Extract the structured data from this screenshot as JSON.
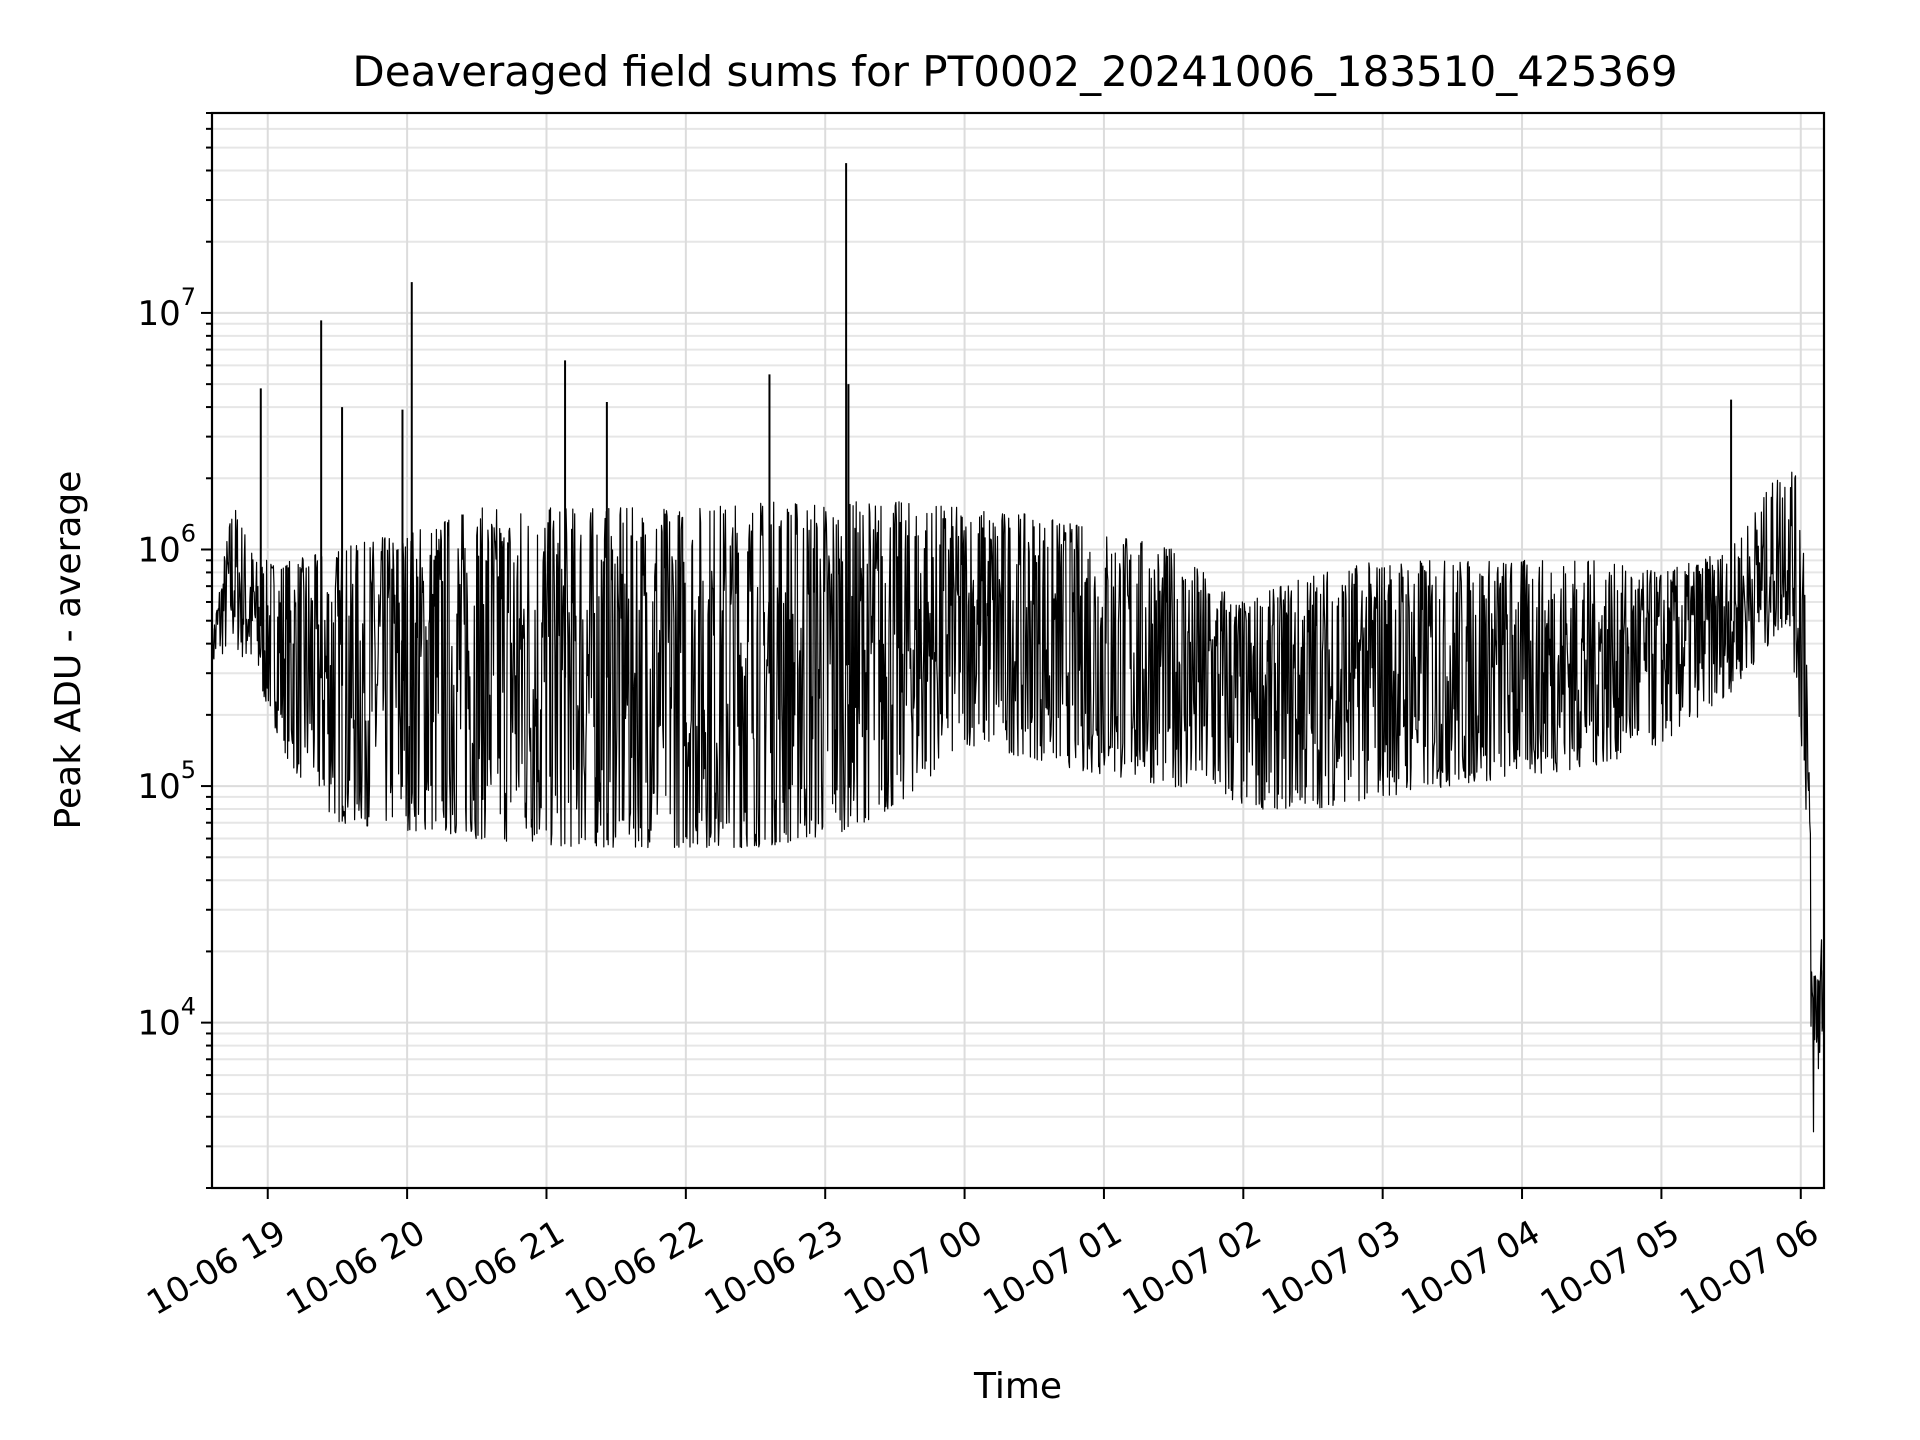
{
  "chart_data": {
    "type": "line",
    "title": "Deaveraged field sums for PT0002_20241006_183510_425369",
    "xlabel": "Time",
    "ylabel": "Peak ADU - average",
    "yscale": "log",
    "ylim": [
      2000,
      70000000
    ],
    "xlim": [
      "2024-10-06 18:36",
      "2024-10-07 06:10"
    ],
    "grid": true,
    "x_ticks": [
      {
        "time": "2024-10-06 19:00",
        "label": "10-06 19"
      },
      {
        "time": "2024-10-06 20:00",
        "label": "10-06 20"
      },
      {
        "time": "2024-10-06 21:00",
        "label": "10-06 21"
      },
      {
        "time": "2024-10-06 22:00",
        "label": "10-06 22"
      },
      {
        "time": "2024-10-06 23:00",
        "label": "10-06 23"
      },
      {
        "time": "2024-10-07 00:00",
        "label": "10-07 00"
      },
      {
        "time": "2024-10-07 01:00",
        "label": "10-07 01"
      },
      {
        "time": "2024-10-07 02:00",
        "label": "10-07 02"
      },
      {
        "time": "2024-10-07 03:00",
        "label": "10-07 03"
      },
      {
        "time": "2024-10-07 04:00",
        "label": "10-07 04"
      },
      {
        "time": "2024-10-07 05:00",
        "label": "10-07 05"
      },
      {
        "time": "2024-10-07 06:00",
        "label": "10-07 06"
      }
    ],
    "y_ticks": [
      {
        "value": 10000,
        "base": "10",
        "exp": "4"
      },
      {
        "value": 100000,
        "base": "10",
        "exp": "5"
      },
      {
        "value": 1000000,
        "base": "10",
        "exp": "6"
      },
      {
        "value": 10000000,
        "base": "10",
        "exp": "7"
      }
    ],
    "series": [
      {
        "color": "#000000",
        "envelope": [
          {
            "time": "2024-10-06 18:36",
            "low": 320000,
            "high": 450000
          },
          {
            "time": "2024-10-06 18:45",
            "low": 400000,
            "high": 1600000
          },
          {
            "time": "2024-10-06 18:55",
            "low": 280000,
            "high": 900000
          },
          {
            "time": "2024-10-06 19:10",
            "low": 120000,
            "high": 900000
          },
          {
            "time": "2024-10-06 19:30",
            "low": 70000,
            "high": 1000000
          },
          {
            "time": "2024-10-06 20:00",
            "low": 65000,
            "high": 1200000
          },
          {
            "time": "2024-10-06 20:30",
            "low": 60000,
            "high": 1500000
          },
          {
            "time": "2024-10-06 21:00",
            "low": 55000,
            "high": 1500000
          },
          {
            "time": "2024-10-06 21:30",
            "low": 55000,
            "high": 1500000
          },
          {
            "time": "2024-10-06 22:00",
            "low": 55000,
            "high": 1500000
          },
          {
            "time": "2024-10-06 22:30",
            "low": 55000,
            "high": 1600000
          },
          {
            "time": "2024-10-06 23:00",
            "low": 60000,
            "high": 1600000
          },
          {
            "time": "2024-10-06 23:30",
            "low": 80000,
            "high": 1600000
          },
          {
            "time": "2024-10-07 00:00",
            "low": 150000,
            "high": 1500000
          },
          {
            "time": "2024-10-07 00:30",
            "low": 130000,
            "high": 1400000
          },
          {
            "time": "2024-10-07 01:00",
            "low": 110000,
            "high": 1200000
          },
          {
            "time": "2024-10-07 01:30",
            "low": 100000,
            "high": 1000000
          },
          {
            "time": "2024-10-07 02:00",
            "low": 80000,
            "high": 600000
          },
          {
            "time": "2024-10-07 02:30",
            "low": 80000,
            "high": 800000
          },
          {
            "time": "2024-10-07 03:00",
            "low": 90000,
            "high": 900000
          },
          {
            "time": "2024-10-07 03:30",
            "low": 100000,
            "high": 900000
          },
          {
            "time": "2024-10-07 04:00",
            "low": 110000,
            "high": 900000
          },
          {
            "time": "2024-10-07 04:30",
            "low": 120000,
            "high": 900000
          },
          {
            "time": "2024-10-07 05:00",
            "low": 150000,
            "high": 800000
          },
          {
            "time": "2024-10-07 05:30",
            "low": 250000,
            "high": 1000000
          },
          {
            "time": "2024-10-07 05:55",
            "low": 500000,
            "high": 2500000
          },
          {
            "time": "2024-10-07 06:02",
            "low": 100000,
            "high": 1500000
          },
          {
            "time": "2024-10-07 06:05",
            "low": 3000,
            "high": 18000
          },
          {
            "time": "2024-10-07 06:10",
            "low": 10000,
            "high": 28000
          }
        ],
        "spikes": [
          {
            "time": "2024-10-06 18:57",
            "value": 4800000
          },
          {
            "time": "2024-10-06 19:23",
            "value": 9300000
          },
          {
            "time": "2024-10-06 19:32",
            "value": 4000000
          },
          {
            "time": "2024-10-06 19:58",
            "value": 3900000
          },
          {
            "time": "2024-10-06 20:02",
            "value": 13500000
          },
          {
            "time": "2024-10-06 21:08",
            "value": 6300000
          },
          {
            "time": "2024-10-06 21:26",
            "value": 4200000
          },
          {
            "time": "2024-10-06 22:36",
            "value": 5500000
          },
          {
            "time": "2024-10-06 23:09",
            "value": 43000000
          },
          {
            "time": "2024-10-06 23:10",
            "value": 5000000
          },
          {
            "time": "2024-10-07 05:30",
            "value": 4300000
          }
        ]
      }
    ]
  }
}
